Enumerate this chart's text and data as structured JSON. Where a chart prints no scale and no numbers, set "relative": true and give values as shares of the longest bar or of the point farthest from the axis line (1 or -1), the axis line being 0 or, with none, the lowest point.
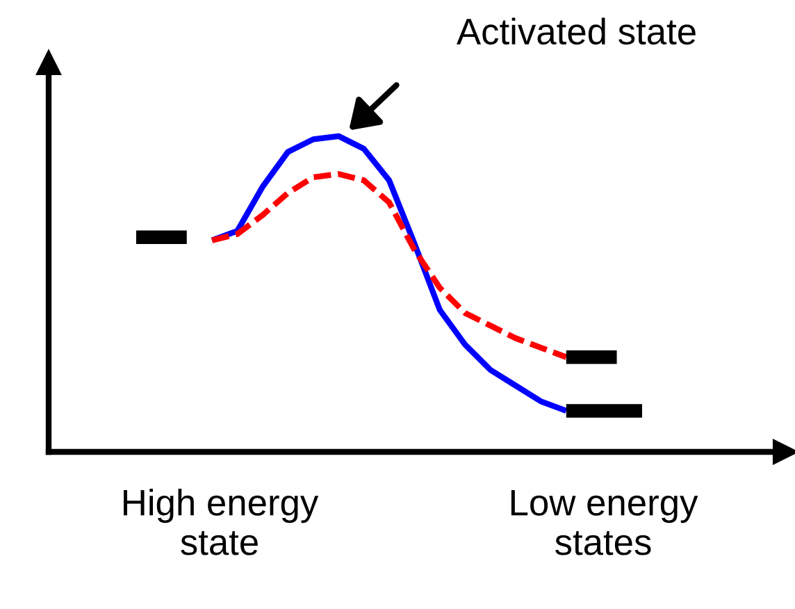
{
  "chart_data": {
    "type": "line",
    "relative": true,
    "categories": [
      null,
      null,
      null,
      null,
      null,
      null,
      null,
      null,
      null,
      null,
      null,
      null,
      null,
      null,
      null,
      null,
      null,
      null,
      null,
      null,
      null
    ],
    "series": [
      {
        "color": "#0000ff",
        "line_style": "solid",
        "values": [
          null,
          null,
          null,
          0.67,
          0.7,
          0.84,
          0.95,
          0.99,
          1,
          0.96,
          0.86,
          0.66,
          0.45,
          0.34,
          0.26,
          0.21,
          0.16,
          0.13,
          null,
          null,
          null
        ]
      },
      {
        "color": "#ff0000",
        "line_style": "dashed",
        "values": [
          null,
          null,
          null,
          0.67,
          0.69,
          0.75,
          0.82,
          0.87,
          0.88,
          0.86,
          0.79,
          0.64,
          0.52,
          0.44,
          0.4,
          0.36,
          0.33,
          0.3,
          null,
          null,
          null
        ]
      },
      {
        "color": "#000000",
        "line_style": "solid",
        "values": [
          0.68,
          0.68,
          0.68,
          null,
          null,
          null,
          null,
          null,
          null,
          null,
          null,
          null,
          null,
          null,
          null,
          null,
          null,
          null,
          null,
          null,
          null
        ]
      },
      {
        "color": "#000000",
        "line_style": "solid",
        "values": [
          null,
          null,
          null,
          null,
          null,
          null,
          null,
          null,
          null,
          null,
          null,
          null,
          null,
          null,
          null,
          null,
          null,
          0.3,
          0.3,
          0.3,
          null
        ]
      },
      {
        "color": "#000000",
        "line_style": "solid",
        "values": [
          null,
          null,
          null,
          null,
          null,
          null,
          null,
          null,
          null,
          null,
          null,
          null,
          null,
          null,
          null,
          null,
          null,
          0.13,
          0.13,
          0.13,
          0.13
        ]
      }
    ],
    "annotations": [
      "Activated state",
      "High energy\nstate",
      "Low energy\nstates"
    ]
  }
}
